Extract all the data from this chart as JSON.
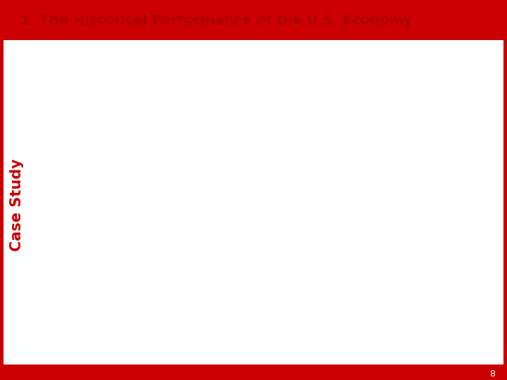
{
  "title": "1. The Historical Performance of the U.S. Economy",
  "title_color": "#AA0000",
  "border_color": "#CC0000",
  "bg_color": "#FFFFFF",
  "side_label": "Case Study",
  "side_label_color": "#CC0000",
  "page_number": "8",
  "fs": 9.5
}
